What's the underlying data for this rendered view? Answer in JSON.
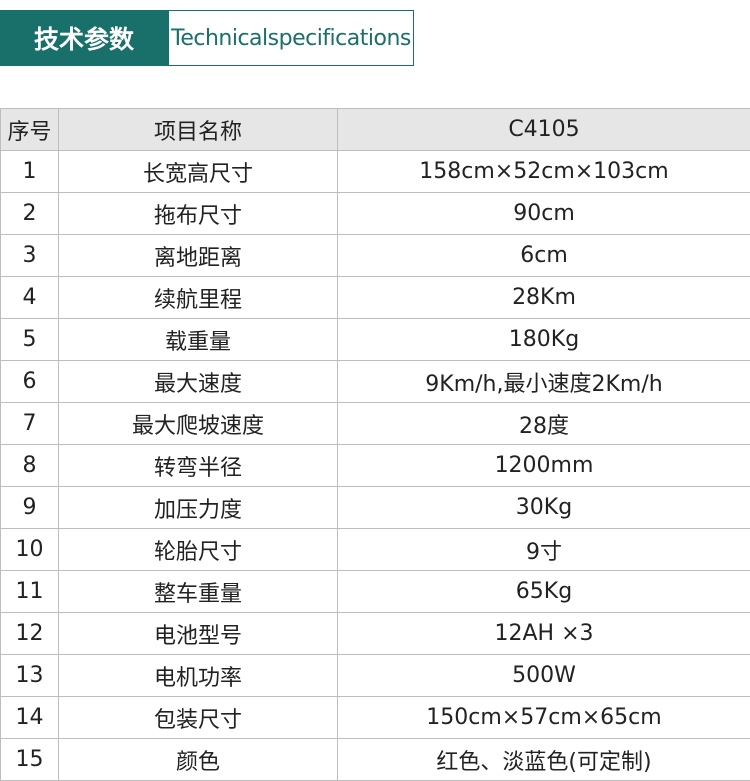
{
  "header": {
    "title": "技术参数",
    "subtitle": "Technicalspecifications"
  },
  "table": {
    "columns": [
      "序号",
      "项目名称",
      "C4105"
    ],
    "rows": [
      [
        "1",
        "长宽高尺寸",
        "158cm×52cm×103cm"
      ],
      [
        "2",
        "拖布尺寸",
        "90cm"
      ],
      [
        "3",
        "离地距离",
        "6cm"
      ],
      [
        "4",
        "续航里程",
        "28Km"
      ],
      [
        "5",
        "载重量",
        "180Kg"
      ],
      [
        "6",
        "最大速度",
        "9Km/h,最小速度2Km/h"
      ],
      [
        "7",
        "最大爬坡速度",
        "28度"
      ],
      [
        "8",
        "转弯半径",
        "1200mm"
      ],
      [
        "9",
        "加压力度",
        "30Kg"
      ],
      [
        "10",
        "轮胎尺寸",
        "9寸"
      ],
      [
        "11",
        "整车重量",
        "65Kg"
      ],
      [
        "12",
        "电池型号",
        "12AH ×3"
      ],
      [
        "13",
        "电机功率",
        "500W"
      ],
      [
        "14",
        "包装尺寸",
        "150cm×57cm×65cm"
      ],
      [
        "15",
        "颜色",
        "红色、淡蓝色(可定制)"
      ]
    ]
  }
}
